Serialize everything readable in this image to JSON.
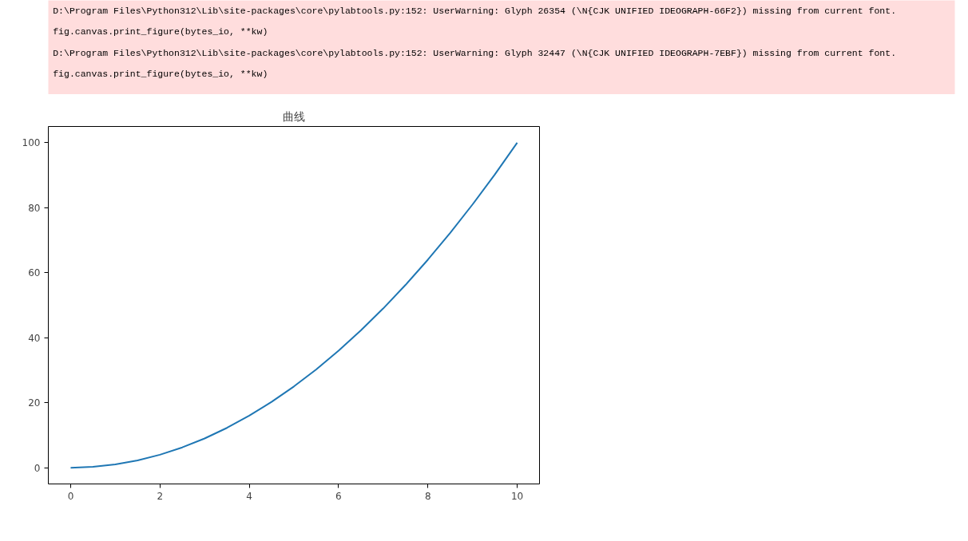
{
  "chart_data": {
    "type": "line",
    "title": "曲线",
    "annotations": [
      "D:\\Program Files\\Python312\\Lib\\site-packages\\core\\pylabtools.py:152: UserWarning: Glyph 26354 (\\N{CJK UNIFIED IDEOGRAPH-66F2}) missing from current font.",
      "  fig.canvas.print_figure(bytes_io, **kw)",
      "D:\\Program Files\\Python312\\Lib\\site-packages\\core\\pylabtools.py:152: UserWarning: Glyph 32447 (\\N{CJK UNIFIED IDEOGRAPH-7EBF}) missing from current font.",
      "  fig.canvas.print_figure(bytes_io, **kw)"
    ],
    "x": [
      0,
      0.5,
      1,
      1.5,
      2,
      2.5,
      3,
      3.5,
      4,
      4.5,
      5,
      5.5,
      6,
      6.5,
      7,
      7.5,
      8,
      8.5,
      9,
      9.5,
      10
    ],
    "series": [
      {
        "color": "#1f77b4",
        "values": [
          0,
          0.25,
          1,
          2.25,
          4,
          6.25,
          9,
          12.25,
          16,
          20.25,
          25,
          30.25,
          36,
          42.25,
          49,
          56.25,
          64,
          72.25,
          81,
          90.25,
          100
        ]
      }
    ],
    "xlim": [
      -0.5,
      10.5
    ],
    "ylim": [
      -5,
      105
    ],
    "xticks": [
      0,
      2,
      4,
      6,
      8,
      10
    ],
    "yticks": [
      0,
      20,
      40,
      60,
      80,
      100
    ],
    "grid": false
  }
}
